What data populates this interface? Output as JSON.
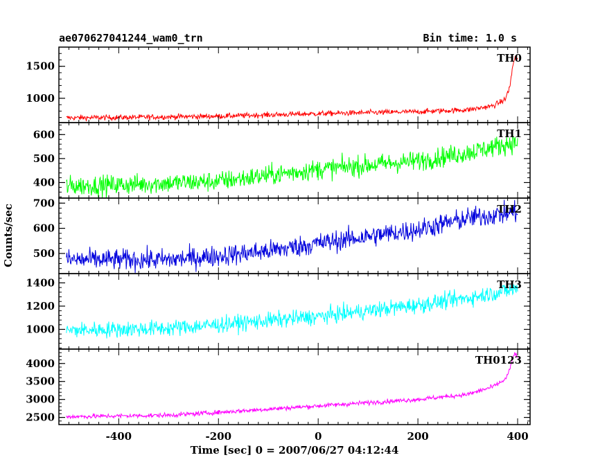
{
  "header": {
    "left_title": "ae070627041244_wam0_trn",
    "right_title": "Bin time: 1.0 s"
  },
  "chart_data": {
    "type": "line",
    "xlabel": "Time [sec] 0 = 2007/06/27 04:12:44",
    "ylabel": "Counts/sec",
    "xlim": [
      -520,
      425
    ],
    "x_ticks": [
      -400,
      -200,
      0,
      200,
      400
    ],
    "x_range": [
      -505,
      400
    ],
    "grid": false,
    "panels": [
      {
        "name": "TH0",
        "color": "#ff0000",
        "ylim": [
          620,
          1800
        ],
        "yticks": [
          1000,
          1500
        ],
        "profile_x": [
          -505,
          -400,
          -200,
          0,
          200,
          300,
          350,
          375,
          385,
          390,
          395,
          400
        ],
        "profile_y": [
          695,
          700,
          720,
          760,
          790,
          820,
          880,
          980,
          1200,
          1500,
          1650,
          1600
        ],
        "noise": 30
      },
      {
        "name": "TH1",
        "color": "#00ff00",
        "ylim": [
          335,
          650
        ],
        "yticks": [
          400,
          500,
          600
        ],
        "profile_x": [
          -505,
          -400,
          -200,
          0,
          200,
          300,
          400
        ],
        "profile_y": [
          385,
          390,
          405,
          455,
          490,
          525,
          570
        ],
        "noise": 30
      },
      {
        "name": "TH2",
        "color": "#0000dd",
        "ylim": [
          420,
          720
        ],
        "yticks": [
          500,
          600,
          700
        ],
        "profile_x": [
          -505,
          -300,
          -200,
          -100,
          0,
          200,
          300,
          400
        ],
        "profile_y": [
          475,
          475,
          490,
          510,
          540,
          595,
          640,
          665
        ],
        "noise": 30
      },
      {
        "name": "TH3",
        "color": "#00ffff",
        "ylim": [
          830,
          1480
        ],
        "yticks": [
          1000,
          1200,
          1400
        ],
        "profile_x": [
          -505,
          -300,
          -200,
          0,
          200,
          300,
          400
        ],
        "profile_y": [
          990,
          1010,
          1040,
          1110,
          1210,
          1270,
          1350
        ],
        "noise": 50
      },
      {
        "name": "TH0123",
        "color": "#ff00ff",
        "ylim": [
          2300,
          4400
        ],
        "yticks": [
          2500,
          3000,
          3500,
          4000
        ],
        "profile_x": [
          -505,
          -300,
          -200,
          0,
          200,
          300,
          350,
          375,
          385,
          390,
          395,
          400
        ],
        "profile_y": [
          2520,
          2560,
          2640,
          2820,
          3000,
          3140,
          3350,
          3550,
          3850,
          4150,
          4300,
          4150
        ],
        "noise": 45
      }
    ]
  }
}
